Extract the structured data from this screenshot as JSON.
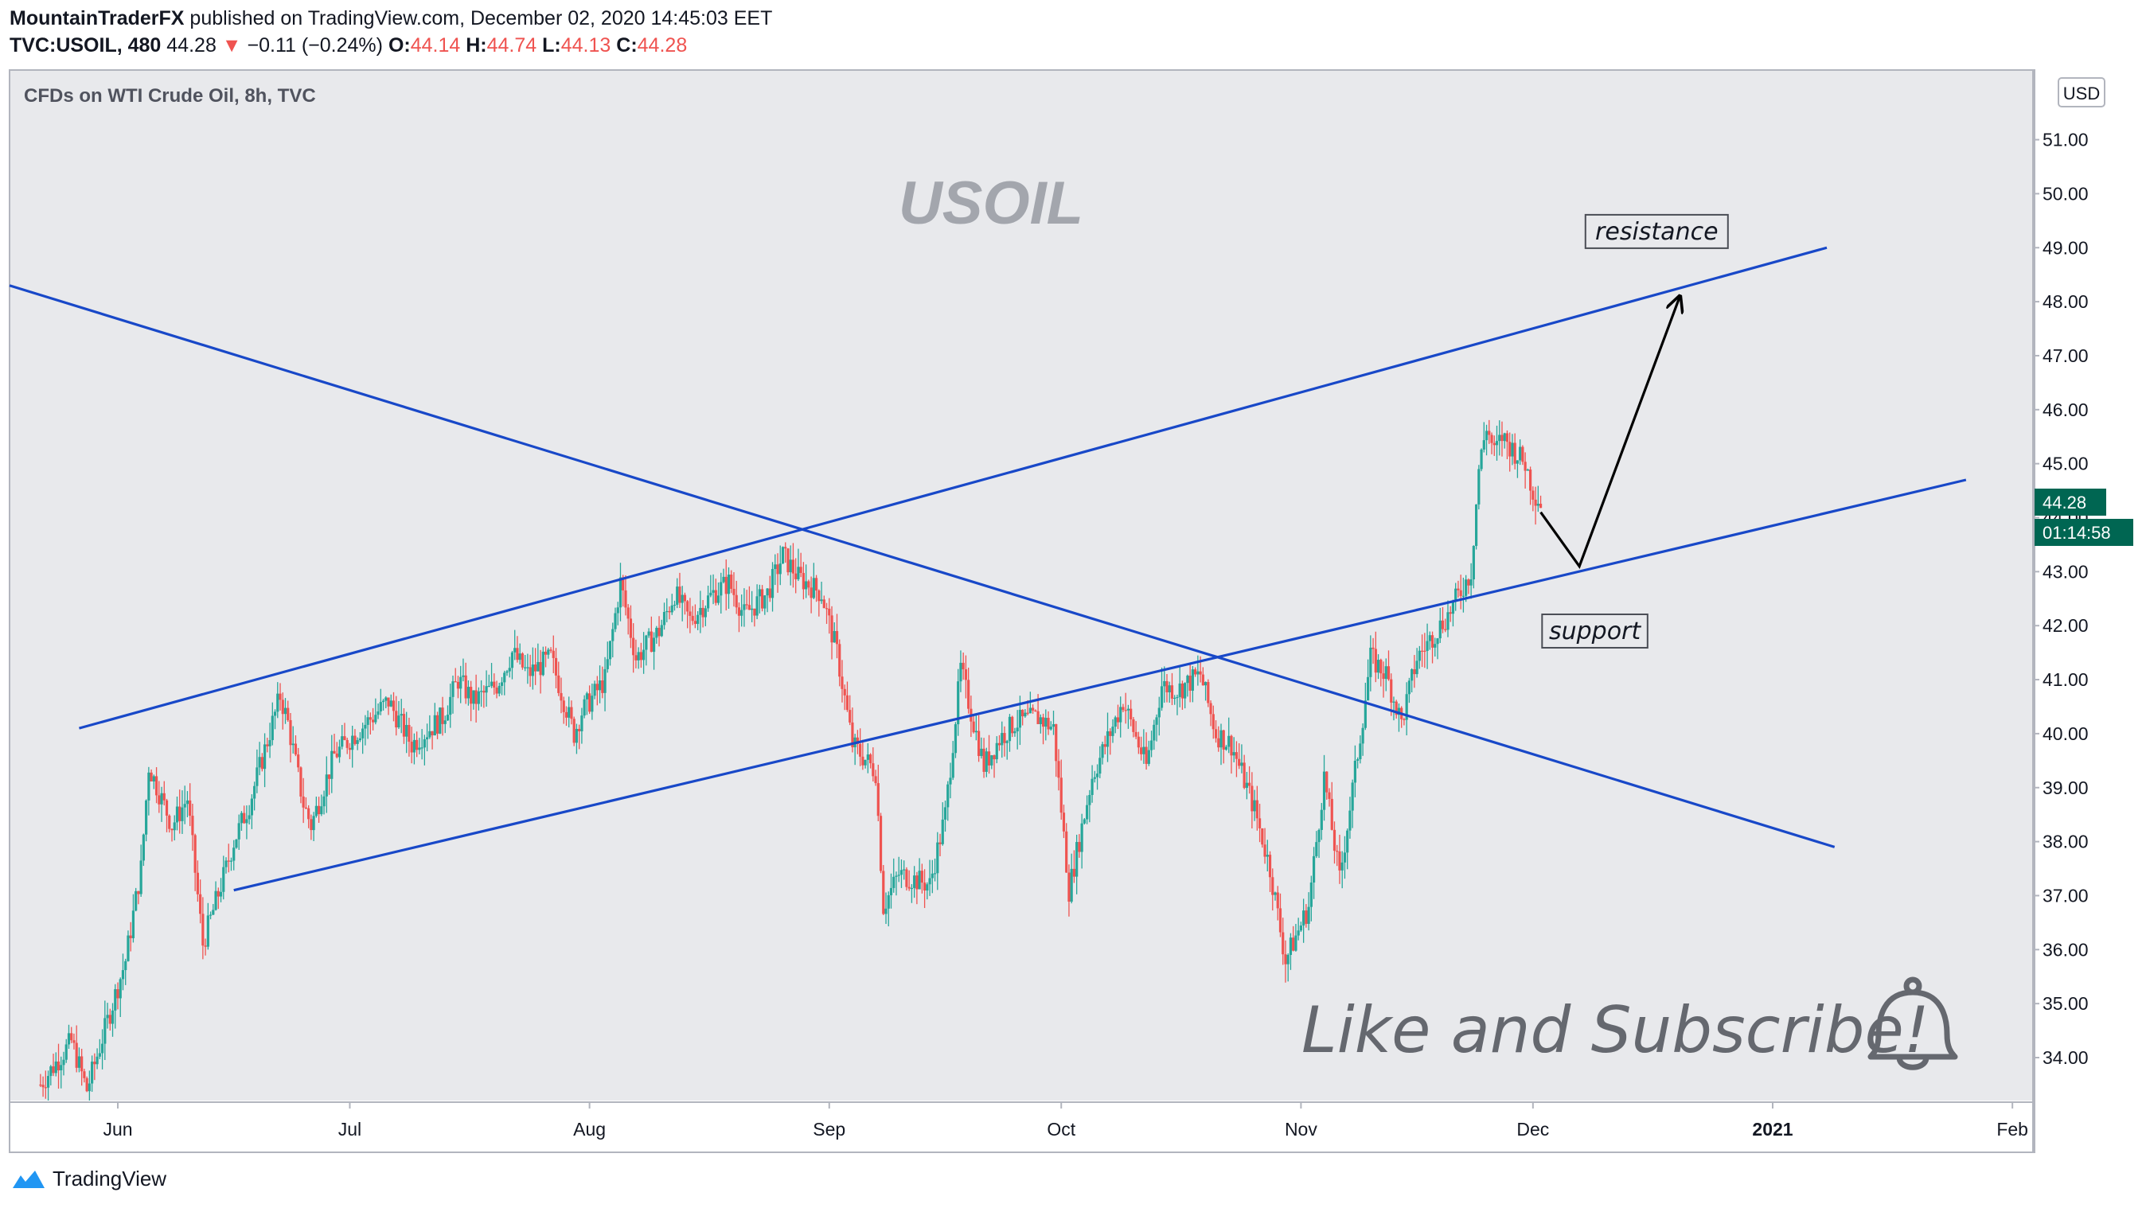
{
  "header": {
    "author": "MountainTraderFX",
    "published": "published on TradingView.com, December 02, 2020 14:45:03 EET",
    "symbol": "TVC:USOIL, 480",
    "last": "44.28",
    "change": "−0.11 (−0.24%)",
    "o_label": "O:",
    "o": "44.14",
    "h_label": "H:",
    "h": "44.74",
    "l_label": "L:",
    "l": "44.13",
    "c_label": "C:",
    "c": "44.28"
  },
  "footer": {
    "brand": "TradingView"
  },
  "chart_data": {
    "type": "candlestick",
    "title": "CFDs on WTI Crude Oil, 8h, TVC",
    "watermark": "USOIL",
    "currency": "USD",
    "last_price": "44.28",
    "countdown": "01:14:58",
    "x_ticks": [
      "Jun",
      "Jul",
      "Aug",
      "Sep",
      "Oct",
      "Nov",
      "Dec",
      "2021",
      "Feb"
    ],
    "y_ticks": [
      "34.00",
      "35.00",
      "36.00",
      "37.00",
      "38.00",
      "39.00",
      "40.00",
      "41.00",
      "42.00",
      "43.00",
      "44.00",
      "45.00",
      "46.00",
      "47.00",
      "48.00",
      "49.00",
      "50.00",
      "51.00"
    ],
    "ylim": [
      33.2,
      52.2
    ],
    "series_daily_close": [
      [
        "2020-05-22",
        33.5
      ],
      [
        "2020-05-26",
        34.3
      ],
      [
        "2020-05-28",
        33.4
      ],
      [
        "2020-06-02",
        35.8
      ],
      [
        "2020-06-04",
        37.5
      ],
      [
        "2020-06-05",
        39.4
      ],
      [
        "2020-06-08",
        38.3
      ],
      [
        "2020-06-10",
        38.8
      ],
      [
        "2020-06-12",
        36.1
      ],
      [
        "2020-06-15",
        37.5
      ],
      [
        "2020-06-16",
        38.0
      ],
      [
        "2020-06-18",
        38.7
      ],
      [
        "2020-06-22",
        40.7
      ],
      [
        "2020-06-23",
        40.2
      ],
      [
        "2020-06-25",
        38.7
      ],
      [
        "2020-06-26",
        38.3
      ],
      [
        "2020-06-29",
        39.6
      ],
      [
        "2020-07-01",
        39.9
      ],
      [
        "2020-07-06",
        40.6
      ],
      [
        "2020-07-09",
        39.8
      ],
      [
        "2020-07-13",
        40.3
      ],
      [
        "2020-07-15",
        41.0
      ],
      [
        "2020-07-17",
        40.6
      ],
      [
        "2020-07-20",
        40.9
      ],
      [
        "2020-07-22",
        41.5
      ],
      [
        "2020-07-24",
        41.1
      ],
      [
        "2020-07-27",
        41.4
      ],
      [
        "2020-07-30",
        40.0
      ],
      [
        "2020-07-31",
        40.4
      ],
      [
        "2020-08-03",
        41.0
      ],
      [
        "2020-08-05",
        42.8
      ],
      [
        "2020-08-07",
        41.4
      ],
      [
        "2020-08-10",
        41.9
      ],
      [
        "2020-08-12",
        42.6
      ],
      [
        "2020-08-14",
        42.1
      ],
      [
        "2020-08-17",
        42.6
      ],
      [
        "2020-08-19",
        42.8
      ],
      [
        "2020-08-21",
        42.2
      ],
      [
        "2020-08-24",
        42.6
      ],
      [
        "2020-08-26",
        43.3
      ],
      [
        "2020-08-28",
        42.9
      ],
      [
        "2020-08-31",
        42.6
      ],
      [
        "2020-09-02",
        41.5
      ],
      [
        "2020-09-04",
        39.8
      ],
      [
        "2020-09-07",
        39.3
      ],
      [
        "2020-09-08",
        36.8
      ],
      [
        "2020-09-10",
        37.4
      ],
      [
        "2020-09-14",
        37.2
      ],
      [
        "2020-09-16",
        38.5
      ],
      [
        "2020-09-18",
        41.2
      ],
      [
        "2020-09-21",
        39.4
      ],
      [
        "2020-09-23",
        39.9
      ],
      [
        "2020-09-25",
        40.2
      ],
      [
        "2020-09-28",
        40.3
      ],
      [
        "2020-09-30",
        40.1
      ],
      [
        "2020-10-02",
        37.1
      ],
      [
        "2020-10-05",
        39.2
      ],
      [
        "2020-10-07",
        39.9
      ],
      [
        "2020-10-09",
        40.6
      ],
      [
        "2020-10-12",
        39.4
      ],
      [
        "2020-10-14",
        40.9
      ],
      [
        "2020-10-16",
        40.8
      ],
      [
        "2020-10-19",
        41.1
      ],
      [
        "2020-10-21",
        40.0
      ],
      [
        "2020-10-23",
        39.8
      ],
      [
        "2020-10-26",
        38.6
      ],
      [
        "2020-10-28",
        37.5
      ],
      [
        "2020-10-30",
        35.8
      ],
      [
        "2020-11-02",
        36.8
      ],
      [
        "2020-11-04",
        39.2
      ],
      [
        "2020-11-06",
        37.3
      ],
      [
        "2020-11-09",
        40.3
      ],
      [
        "2020-11-10",
        41.4
      ],
      [
        "2020-11-12",
        41.1
      ],
      [
        "2020-11-14",
        40.2
      ],
      [
        "2020-11-16",
        41.4
      ],
      [
        "2020-11-18",
        41.8
      ],
      [
        "2020-11-20",
        42.2
      ],
      [
        "2020-11-23",
        43.0
      ],
      [
        "2020-11-24",
        44.9
      ],
      [
        "2020-11-25",
        45.7
      ],
      [
        "2020-11-26",
        45.2
      ],
      [
        "2020-11-27",
        45.5
      ],
      [
        "2020-11-30",
        45.0
      ],
      [
        "2020-12-01",
        44.5
      ],
      [
        "2020-12-02",
        44.28
      ]
    ],
    "trendlines": [
      {
        "name": "upper channel",
        "from": [
          "2020-05-27",
          40.1
        ],
        "to": [
          "2021-01-08",
          49.0
        ]
      },
      {
        "name": "lower channel",
        "from": [
          "2020-06-16",
          37.1
        ],
        "to": [
          "2021-01-26",
          44.7
        ]
      },
      {
        "name": "descending trendline",
        "from": [
          "2020-05-18",
          48.3
        ],
        "to": [
          "2021-01-09",
          37.9
        ]
      }
    ],
    "projection": [
      [
        "2020-12-02",
        44.1
      ],
      [
        "2020-12-07",
        43.1
      ],
      [
        "2020-12-20",
        48.1
      ]
    ],
    "annotations": [
      {
        "text": "resistance",
        "at": [
          "2020-12-17",
          49.3
        ]
      },
      {
        "text": "support",
        "at": [
          "2020-12-09",
          41.9
        ]
      }
    ],
    "promo_text": "Like and Subscribe!"
  }
}
